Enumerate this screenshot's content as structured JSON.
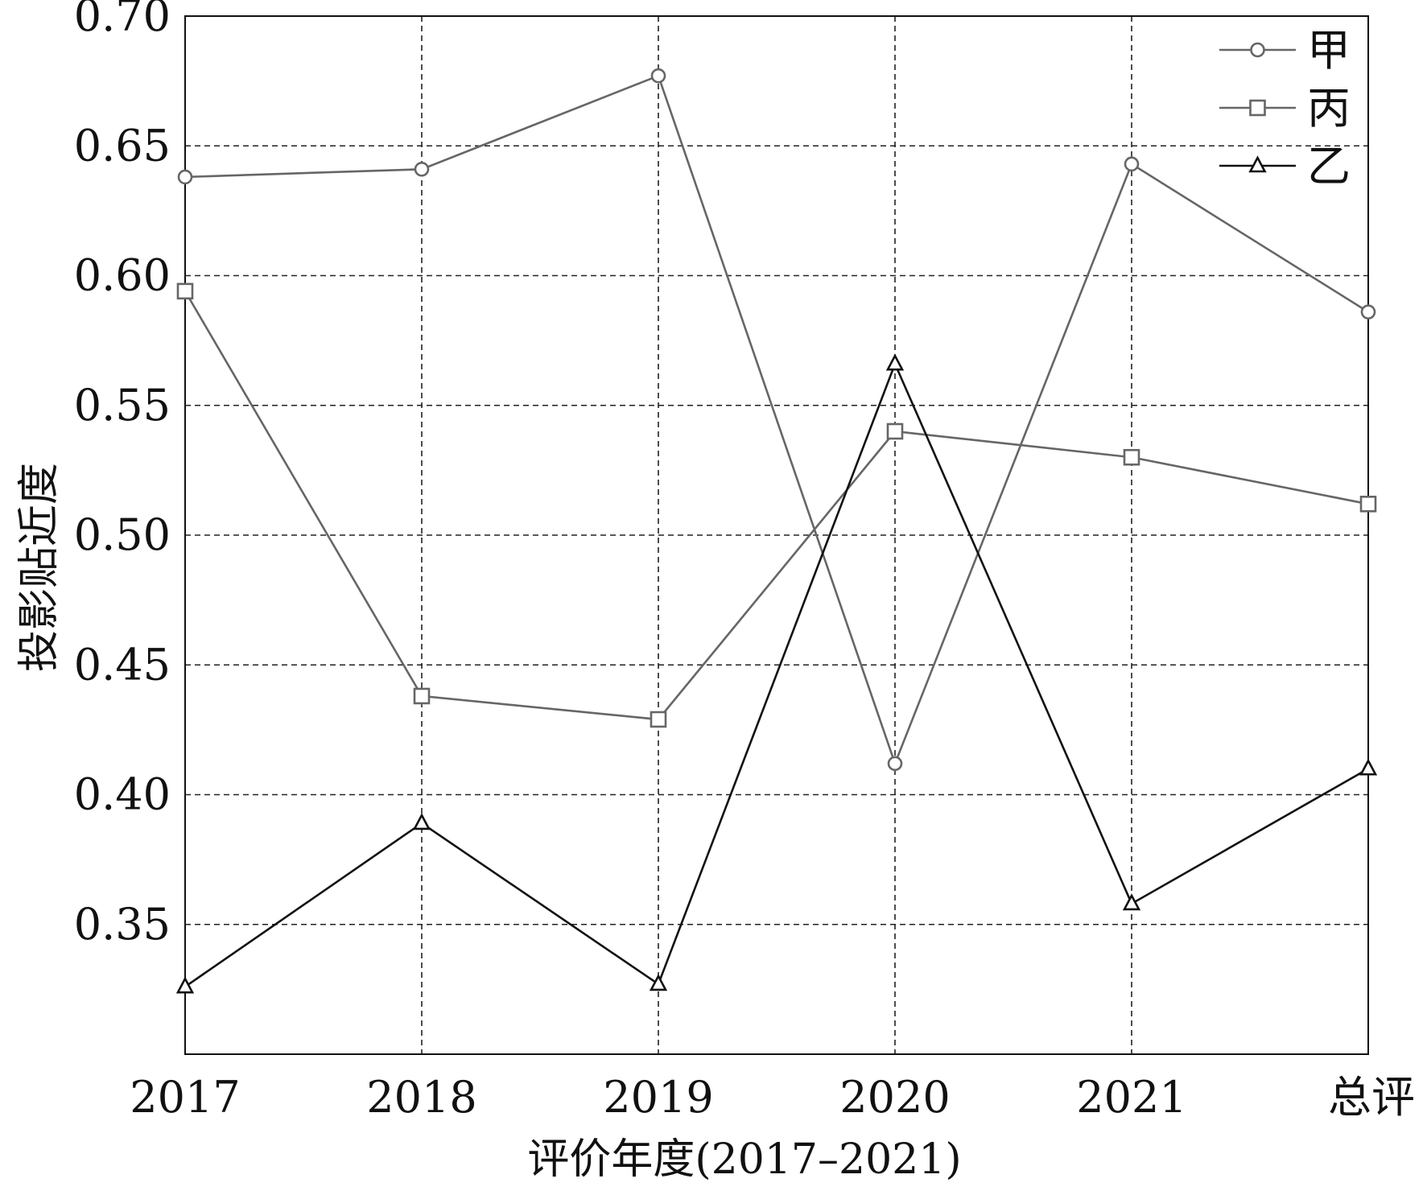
{
  "chart_data": {
    "type": "line",
    "title": "",
    "categories": [
      "2017",
      "2018",
      "2019",
      "2020",
      "2021",
      "总评"
    ],
    "xlabel": "评价年度(2017–2021)",
    "ylabel": "投影贴近度",
    "ylim": [
      0.3,
      0.7
    ],
    "yticks": [
      "0.35",
      "0.40",
      "0.45",
      "0.50",
      "0.55",
      "0.60",
      "0.65",
      "0.70"
    ],
    "grid": true,
    "legend_position": "top-right",
    "series": [
      {
        "name": "甲",
        "marker": "circle",
        "color": "#666666",
        "values": [
          0.638,
          0.641,
          0.677,
          0.412,
          0.643,
          0.586
        ]
      },
      {
        "name": "丙",
        "marker": "square",
        "color": "#666666",
        "values": [
          0.594,
          0.438,
          0.429,
          0.54,
          0.53,
          0.512
        ]
      },
      {
        "name": "乙",
        "marker": "triangle",
        "color": "#111111",
        "values": [
          0.326,
          0.389,
          0.327,
          0.566,
          0.358,
          0.41
        ]
      }
    ]
  }
}
